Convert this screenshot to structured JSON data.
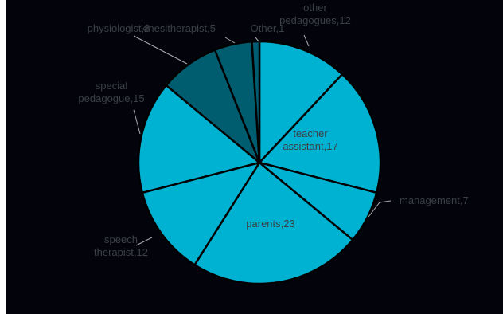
{
  "chart_data": {
    "type": "pie",
    "title": "",
    "legend": "none",
    "start_angle_deg": 0,
    "direction": "clockwise",
    "slices": [
      {
        "name": "other pedagogues",
        "value": 12,
        "label_lines": [
          "other",
          "pedagogues,12"
        ],
        "color": "#00b2d2"
      },
      {
        "name": "teacher assistant",
        "value": 17,
        "label_lines": [
          "teacher",
          "assistant,17"
        ],
        "color": "#00b2d2"
      },
      {
        "name": "management",
        "value": 7,
        "label_lines": [
          "management,7"
        ],
        "color": "#00b2d2"
      },
      {
        "name": "parents",
        "value": 23,
        "label_lines": [
          "parents,23"
        ],
        "color": "#00b2d2"
      },
      {
        "name": "speech therapist",
        "value": 12,
        "label_lines": [
          "speech",
          "therapist,12"
        ],
        "color": "#00b2d2"
      },
      {
        "name": "special pedagogue",
        "value": 15,
        "label_lines": [
          "special",
          "pedagogue,15"
        ],
        "color": "#00b2d2"
      },
      {
        "name": "physiologist",
        "value": 8,
        "label_lines": [
          "physiologist,8"
        ],
        "color": "#005c6f"
      },
      {
        "name": "kinesitherapist",
        "value": 5,
        "label_lines": [
          "kinesitherapist,5"
        ],
        "color": "#005c6f"
      },
      {
        "name": "Other",
        "value": 1,
        "label_lines": [
          "Other,1"
        ],
        "color": "#005c6f"
      }
    ]
  }
}
